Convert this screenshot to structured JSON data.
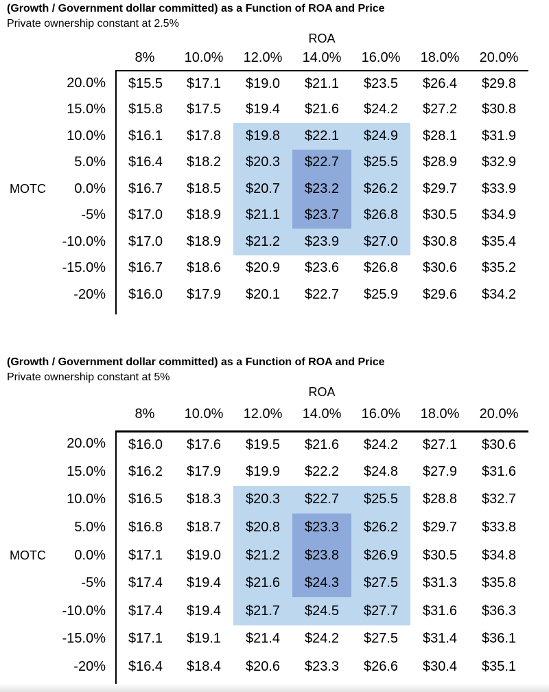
{
  "colors": {
    "highlight_light": "#BDD7EE",
    "highlight_dark": "#8EAADB",
    "text": "#000000",
    "border": "#000000"
  },
  "chart_data": [
    {
      "type": "table",
      "title": "(Growth / Government dollar committed) as a Function of ROA and Price",
      "subtitle": "Private ownership constant at 2.5%",
      "col_axis": "ROA",
      "row_axis": "MOTC",
      "row_axis_row_index": 4,
      "columns": [
        "8%",
        "10.0%",
        "12.0%",
        "14.0%",
        "16.0%",
        "18.0%",
        "20.0%"
      ],
      "row_labels": [
        "20.0%",
        "15.0%",
        "10.0%",
        "5.0%",
        "0.0%",
        "-5%",
        "-10.0%",
        "-15.0%",
        "-20%"
      ],
      "rows": [
        [
          "$15.5",
          "$17.1",
          "$19.0",
          "$21.1",
          "$23.5",
          "$26.4",
          "$29.8"
        ],
        [
          "$15.8",
          "$17.5",
          "$19.4",
          "$21.6",
          "$24.2",
          "$27.2",
          "$30.8"
        ],
        [
          "$16.1",
          "$17.8",
          "$19.8",
          "$22.1",
          "$24.9",
          "$28.1",
          "$31.9"
        ],
        [
          "$16.4",
          "$18.2",
          "$20.3",
          "$22.7",
          "$25.5",
          "$28.9",
          "$32.9"
        ],
        [
          "$16.7",
          "$18.5",
          "$20.7",
          "$23.2",
          "$26.2",
          "$29.7",
          "$33.9"
        ],
        [
          "$17.0",
          "$18.9",
          "$21.1",
          "$23.7",
          "$26.8",
          "$30.5",
          "$34.9"
        ],
        [
          "$17.0",
          "$18.9",
          "$21.2",
          "$23.9",
          "$27.0",
          "$30.8",
          "$35.4"
        ],
        [
          "$16.7",
          "$18.6",
          "$20.9",
          "$23.6",
          "$26.8",
          "$30.6",
          "$35.2"
        ],
        [
          "$16.0",
          "$17.9",
          "$20.1",
          "$22.7",
          "$25.9",
          "$29.6",
          "$34.2"
        ]
      ],
      "highlight_light": {
        "r0": 2,
        "r1": 6,
        "c0": 2,
        "c1": 4
      },
      "highlight_dark": {
        "r0": 3,
        "r1": 5,
        "c0": 3,
        "c1": 3
      }
    },
    {
      "type": "table",
      "title": "(Growth / Government dollar committed) as a Function of ROA and Price",
      "subtitle": "Private ownership constant at 5%",
      "col_axis": "ROA",
      "row_axis": "MOTC",
      "row_axis_row_index": 4,
      "columns": [
        "8%",
        "10.0%",
        "12.0%",
        "14.0%",
        "16.0%",
        "18.0%",
        "20.0%"
      ],
      "row_labels": [
        "20.0%",
        "15.0%",
        "10.0%",
        "5.0%",
        "0.0%",
        "-5%",
        "-10.0%",
        "-15.0%",
        "-20%"
      ],
      "rows": [
        [
          "$16.0",
          "$17.6",
          "$19.5",
          "$21.6",
          "$24.2",
          "$27.1",
          "$30.6"
        ],
        [
          "$16.2",
          "$17.9",
          "$19.9",
          "$22.2",
          "$24.8",
          "$27.9",
          "$31.6"
        ],
        [
          "$16.5",
          "$18.3",
          "$20.3",
          "$22.7",
          "$25.5",
          "$28.8",
          "$32.7"
        ],
        [
          "$16.8",
          "$18.7",
          "$20.8",
          "$23.3",
          "$26.2",
          "$29.7",
          "$33.8"
        ],
        [
          "$17.1",
          "$19.0",
          "$21.2",
          "$23.8",
          "$26.9",
          "$30.5",
          "$34.8"
        ],
        [
          "$17.4",
          "$19.4",
          "$21.6",
          "$24.3",
          "$27.5",
          "$31.3",
          "$35.8"
        ],
        [
          "$17.4",
          "$19.4",
          "$21.7",
          "$24.5",
          "$27.7",
          "$31.6",
          "$36.3"
        ],
        [
          "$17.1",
          "$19.1",
          "$21.4",
          "$24.2",
          "$27.5",
          "$31.4",
          "$36.1"
        ],
        [
          "$16.4",
          "$18.4",
          "$20.6",
          "$23.3",
          "$26.6",
          "$30.4",
          "$35.1"
        ]
      ],
      "highlight_light": {
        "r0": 2,
        "r1": 6,
        "c0": 2,
        "c1": 4
      },
      "highlight_dark": {
        "r0": 3,
        "r1": 5,
        "c0": 3,
        "c1": 3
      }
    }
  ]
}
